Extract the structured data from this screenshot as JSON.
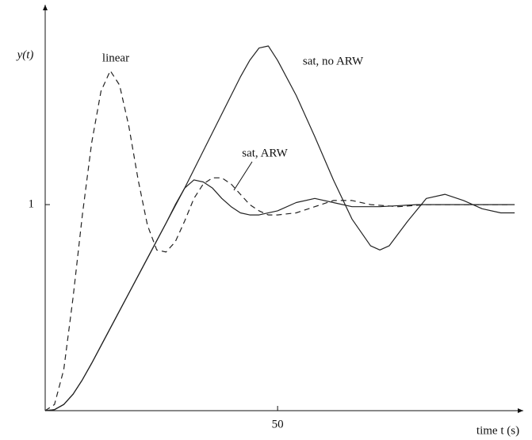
{
  "chart_data": {
    "type": "line",
    "xlabel": "time t (s)",
    "ylabel": "y(t)",
    "xlim": [
      0,
      102
    ],
    "ylim": [
      0,
      1.97
    ],
    "xticks": [
      50
    ],
    "yticks": [
      1
    ],
    "annotations": [
      "linear",
      "sat, no ARW",
      "sat, ARW"
    ],
    "series": [
      {
        "name": "linear",
        "color": "#222",
        "dash": true,
        "x": [
          0,
          2,
          4,
          6,
          8,
          10,
          12,
          14,
          16,
          18,
          20,
          22,
          24,
          26,
          28,
          30,
          32,
          34,
          36,
          38,
          40,
          42,
          44,
          46,
          48,
          50,
          54,
          58,
          62,
          66,
          70,
          76,
          82,
          90,
          100
        ],
        "values": [
          0,
          0.03,
          0.2,
          0.55,
          0.95,
          1.3,
          1.55,
          1.65,
          1.58,
          1.38,
          1.12,
          0.9,
          0.78,
          0.77,
          0.82,
          0.92,
          1.03,
          1.1,
          1.13,
          1.13,
          1.1,
          1.05,
          1.0,
          0.97,
          0.95,
          0.95,
          0.96,
          0.99,
          1.02,
          1.02,
          1.0,
          0.99,
          1.0,
          1.0,
          1.0
        ]
      },
      {
        "name": "sat, no ARW",
        "color": "#222",
        "dash": false,
        "x": [
          0,
          2,
          4,
          6,
          8,
          10,
          14,
          18,
          22,
          26,
          30,
          34,
          38,
          42,
          44,
          46,
          48,
          50,
          54,
          58,
          62,
          66,
          70,
          72,
          74,
          78,
          82,
          86,
          90,
          94,
          98,
          101
        ],
        "values": [
          0,
          0.005,
          0.03,
          0.08,
          0.15,
          0.23,
          0.4,
          0.57,
          0.74,
          0.91,
          1.08,
          1.26,
          1.44,
          1.62,
          1.7,
          1.76,
          1.77,
          1.7,
          1.53,
          1.33,
          1.12,
          0.93,
          0.8,
          0.78,
          0.8,
          0.92,
          1.03,
          1.05,
          1.02,
          0.98,
          0.96,
          0.96
        ]
      },
      {
        "name": "sat, ARW",
        "color": "#222",
        "dash": false,
        "x": [
          0,
          2,
          4,
          6,
          8,
          10,
          14,
          18,
          22,
          26,
          28,
          30,
          32,
          34,
          36,
          38,
          40,
          42,
          44,
          46,
          50,
          54,
          58,
          62,
          66,
          72,
          80,
          90,
          101
        ],
        "values": [
          0,
          0.005,
          0.03,
          0.08,
          0.15,
          0.23,
          0.4,
          0.57,
          0.74,
          0.91,
          1.0,
          1.08,
          1.12,
          1.11,
          1.08,
          1.03,
          0.99,
          0.96,
          0.95,
          0.95,
          0.97,
          1.01,
          1.03,
          1.01,
          0.99,
          0.99,
          1.0,
          1.0,
          1.0
        ]
      }
    ]
  }
}
